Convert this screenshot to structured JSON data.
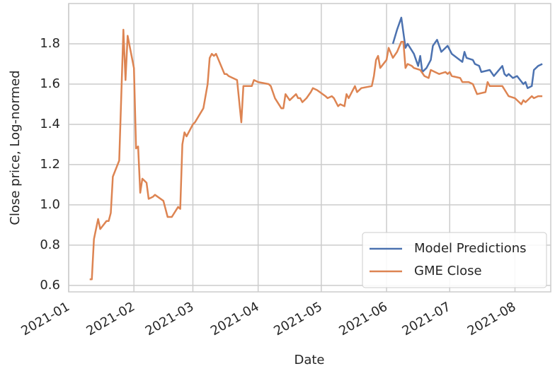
{
  "chart_data": {
    "type": "line",
    "xlabel": "Date",
    "ylabel": "Close price, Log-normed",
    "xlim": [
      "2021-01-01",
      "2021-08-18"
    ],
    "xticks": [
      "2021-01",
      "2021-02",
      "2021-03",
      "2021-04",
      "2021-05",
      "2021-06",
      "2021-07",
      "2021-08"
    ],
    "ylim": [
      0.568,
      2.0
    ],
    "yticks": [
      {
        "value": 0.6,
        "label": "0.6"
      },
      {
        "value": 0.8,
        "label": "0.8"
      },
      {
        "value": 1.0,
        "label": "1.0"
      },
      {
        "value": 1.2,
        "label": "1.2"
      },
      {
        "value": 1.4,
        "label": "1.4"
      },
      {
        "value": 1.6,
        "label": "1.6"
      },
      {
        "value": 1.8,
        "label": "1.8"
      }
    ],
    "grid": true,
    "legend": "lower right",
    "series": [
      {
        "name": "Model Predictions",
        "color": "#4c72b0",
        "x": [
          "2021-06-04",
          "2021-06-06",
          "2021-06-08",
          "2021-06-10",
          "2021-06-11",
          "2021-06-14",
          "2021-06-16",
          "2021-06-17",
          "2021-06-18",
          "2021-06-20",
          "2021-06-22",
          "2021-06-23",
          "2021-06-25",
          "2021-06-27",
          "2021-06-30",
          "2021-07-02",
          "2021-07-07",
          "2021-07-08",
          "2021-07-09",
          "2021-07-12",
          "2021-07-13",
          "2021-07-15",
          "2021-07-16",
          "2021-07-20",
          "2021-07-22",
          "2021-07-26",
          "2021-07-27",
          "2021-07-28",
          "2021-07-29",
          "2021-07-31",
          "2021-08-02",
          "2021-08-05",
          "2021-08-06",
          "2021-08-07",
          "2021-08-09",
          "2021-08-10",
          "2021-08-12",
          "2021-08-14"
        ],
        "values": [
          1.8,
          1.87,
          1.93,
          1.78,
          1.8,
          1.75,
          1.69,
          1.74,
          1.66,
          1.68,
          1.72,
          1.79,
          1.82,
          1.76,
          1.79,
          1.75,
          1.71,
          1.76,
          1.73,
          1.72,
          1.7,
          1.69,
          1.66,
          1.67,
          1.64,
          1.69,
          1.65,
          1.64,
          1.65,
          1.63,
          1.64,
          1.6,
          1.61,
          1.58,
          1.59,
          1.67,
          1.69,
          1.7
        ]
      },
      {
        "name": "GME Close",
        "color": "#dd8452",
        "x": [
          "2021-01-11",
          "2021-01-12",
          "2021-01-13",
          "2021-01-15",
          "2021-01-16",
          "2021-01-19",
          "2021-01-20",
          "2021-01-21",
          "2021-01-22",
          "2021-01-25",
          "2021-01-27",
          "2021-01-28",
          "2021-01-29",
          "2021-02-01",
          "2021-02-02",
          "2021-02-03",
          "2021-02-04",
          "2021-02-05",
          "2021-02-07",
          "2021-02-08",
          "2021-02-10",
          "2021-02-11",
          "2021-02-15",
          "2021-02-17",
          "2021-02-19",
          "2021-02-22",
          "2021-02-23",
          "2021-02-24",
          "2021-02-25",
          "2021-02-26",
          "2021-03-01",
          "2021-03-02",
          "2021-03-06",
          "2021-03-08",
          "2021-03-09",
          "2021-03-10",
          "2021-03-11",
          "2021-03-12",
          "2021-03-16",
          "2021-03-17",
          "2021-03-18",
          "2021-03-22",
          "2021-03-24",
          "2021-03-25",
          "2021-03-26",
          "2021-03-29",
          "2021-03-30",
          "2021-04-01",
          "2021-04-06",
          "2021-04-07",
          "2021-04-09",
          "2021-04-12",
          "2021-04-13",
          "2021-04-14",
          "2021-04-16",
          "2021-04-19",
          "2021-04-20",
          "2021-04-21",
          "2021-04-22",
          "2021-04-24",
          "2021-04-26",
          "2021-04-27",
          "2021-04-29",
          "2021-05-03",
          "2021-05-04",
          "2021-05-06",
          "2021-05-07",
          "2021-05-09",
          "2021-05-10",
          "2021-05-12",
          "2021-05-13",
          "2021-05-14",
          "2021-05-17",
          "2021-05-18",
          "2021-05-20",
          "2021-05-25",
          "2021-05-26",
          "2021-05-27",
          "2021-05-28",
          "2021-05-29",
          "2021-06-01",
          "2021-06-02",
          "2021-06-04",
          "2021-06-06",
          "2021-06-08",
          "2021-06-09",
          "2021-06-10",
          "2021-06-11",
          "2021-06-13",
          "2021-06-14",
          "2021-06-17",
          "2021-06-19",
          "2021-06-21",
          "2021-06-22",
          "2021-06-24",
          "2021-06-26",
          "2021-06-29",
          "2021-06-30",
          "2021-07-01",
          "2021-07-02",
          "2021-07-06",
          "2021-07-07",
          "2021-07-10",
          "2021-07-12",
          "2021-07-14",
          "2021-07-18",
          "2021-07-19",
          "2021-07-20",
          "2021-07-22",
          "2021-07-26",
          "2021-07-29",
          "2021-08-01",
          "2021-08-04",
          "2021-08-05",
          "2021-08-06",
          "2021-08-09",
          "2021-08-10",
          "2021-08-12",
          "2021-08-14"
        ],
        "values": [
          0.63,
          0.63,
          0.83,
          0.93,
          0.88,
          0.92,
          0.92,
          0.96,
          1.14,
          1.22,
          1.87,
          1.62,
          1.84,
          1.68,
          1.28,
          1.29,
          1.06,
          1.13,
          1.11,
          1.03,
          1.04,
          1.05,
          1.02,
          0.94,
          0.94,
          0.99,
          0.98,
          1.3,
          1.36,
          1.34,
          1.4,
          1.41,
          1.48,
          1.6,
          1.73,
          1.75,
          1.74,
          1.75,
          1.65,
          1.65,
          1.64,
          1.62,
          1.41,
          1.59,
          1.59,
          1.59,
          1.62,
          1.61,
          1.6,
          1.59,
          1.53,
          1.48,
          1.48,
          1.55,
          1.52,
          1.55,
          1.53,
          1.53,
          1.51,
          1.53,
          1.56,
          1.58,
          1.57,
          1.54,
          1.53,
          1.54,
          1.53,
          1.49,
          1.5,
          1.49,
          1.55,
          1.53,
          1.59,
          1.56,
          1.58,
          1.59,
          1.64,
          1.72,
          1.74,
          1.68,
          1.72,
          1.78,
          1.73,
          1.76,
          1.81,
          1.81,
          1.68,
          1.7,
          1.69,
          1.68,
          1.67,
          1.64,
          1.63,
          1.67,
          1.66,
          1.65,
          1.66,
          1.65,
          1.66,
          1.64,
          1.63,
          1.61,
          1.61,
          1.6,
          1.55,
          1.56,
          1.61,
          1.59,
          1.59,
          1.59,
          1.54,
          1.53,
          1.5,
          1.52,
          1.51,
          1.54,
          1.53,
          1.54,
          1.54
        ]
      }
    ]
  }
}
